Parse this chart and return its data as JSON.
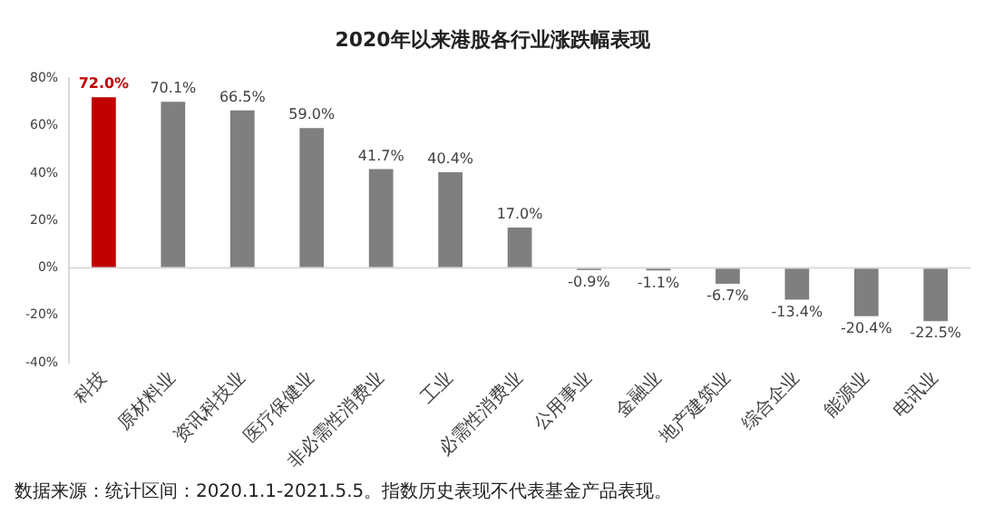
{
  "chart_data": {
    "type": "bar",
    "title": "2020年以来港股各行业涨跌幅表现",
    "categories": [
      "科技",
      "原材料业",
      "资讯科技业",
      "医疗保健业",
      "非必需性消费业",
      "工业",
      "必需性消费业",
      "公用事业",
      "金融业",
      "地产建筑业",
      "综合企业",
      "能源业",
      "电讯业"
    ],
    "values": [
      72.0,
      70.1,
      66.5,
      59.0,
      41.7,
      40.4,
      17.0,
      -0.9,
      -1.1,
      -6.7,
      -13.4,
      -20.4,
      -22.5
    ],
    "colors": [
      "#c00000",
      "#7f7f7f",
      "#7f7f7f",
      "#7f7f7f",
      "#7f7f7f",
      "#7f7f7f",
      "#7f7f7f",
      "#7f7f7f",
      "#7f7f7f",
      "#7f7f7f",
      "#7f7f7f",
      "#7f7f7f",
      "#7f7f7f"
    ],
    "value_labels": [
      "72.0%",
      "70.1%",
      "66.5%",
      "59.0%",
      "41.7%",
      "40.4%",
      "17.0%",
      "-0.9%",
      "-1.1%",
      "-6.7%",
      "-13.4%",
      "-20.4%",
      "-22.5%"
    ],
    "ylim": [
      -40,
      80
    ],
    "yticks": [
      {
        "value": -40,
        "label": "-40%"
      },
      {
        "value": -20,
        "label": "-20%"
      },
      {
        "value": 0,
        "label": "0%"
      },
      {
        "value": 20,
        "label": "20%"
      },
      {
        "value": 40,
        "label": "40%"
      },
      {
        "value": 60,
        "label": "60%"
      },
      {
        "value": 80,
        "label": "80%"
      }
    ],
    "grid": false,
    "legend": false,
    "ref_lines": [
      {
        "axis": "y",
        "value": 0,
        "color": "#d9d9d9"
      }
    ],
    "annotations": [
      "数据来源：统计区间：2020.1.1-2021.5.5。指数历史表现不代表基金产品表现。"
    ]
  }
}
